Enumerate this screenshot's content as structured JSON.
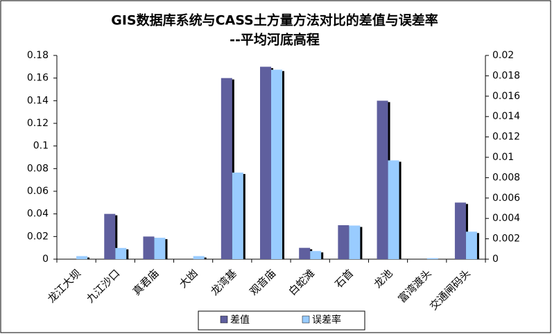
{
  "chart_data": {
    "type": "bar",
    "title": "GIS数据库系统与CASS土方量方法对比的差值与误差率",
    "subtitle": "--平均河底高程",
    "categories": [
      "龙江大坝",
      "九江沙口",
      "真君庙",
      "大凼",
      "龙湾基",
      "观音庙",
      "白蛇滩",
      "石首",
      "龙池",
      "富湾渡头",
      "交通闸码头"
    ],
    "series": [
      {
        "name": "差值",
        "color": "#5f5f9e",
        "values": [
          0,
          0.04,
          0.02,
          0,
          0.16,
          0.17,
          0.01,
          0.03,
          0.14,
          0,
          0.05
        ]
      },
      {
        "name": "误差率",
        "color": "#99ccff",
        "axis": "y2",
        "values": [
          0.0003,
          0.0011,
          0.0021,
          0.0003,
          0.0085,
          0.0186,
          0.0008,
          0.0033,
          0.0097,
          0.0001,
          0.0027
        ]
      }
    ],
    "ylim": [
      0,
      0.18
    ],
    "yticks": [
      0,
      0.02,
      0.04,
      0.06,
      0.08,
      0.1,
      0.12,
      0.14,
      0.16,
      0.18
    ],
    "y2lim": [
      0,
      0.02
    ],
    "y2ticks": [
      0,
      0.002,
      0.004,
      0.006,
      0.008,
      0.01,
      0.012,
      0.014,
      0.016,
      0.018,
      0.02
    ],
    "legend": "bottom",
    "grid": false
  }
}
